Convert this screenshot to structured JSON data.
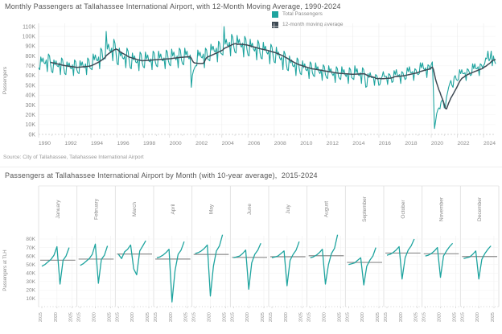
{
  "colors": {
    "teal": "#1EA49F",
    "dark_slate": "#3E4A54",
    "grid": "#efefef",
    "axis_line": "#d9d9d9",
    "avg_line": "#8c8c8c",
    "axis_text": "#8a8a8a",
    "title_text": "#555555"
  },
  "chart1": {
    "title": "Monthly Passengers at Tallahassee International Airport, with 12-Month Moving Average, 1990-2024",
    "ylabel": "Passengers",
    "source": "Source: City of Tallahassee, Tallahassee International Airport",
    "legend": [
      {
        "label": "Total Passengers",
        "color": "#1EA49F"
      },
      {
        "label": "12-month moving average",
        "color": "#3E4A54"
      }
    ]
  },
  "chart2": {
    "title": "Passengers at Tallahassee International Airport by Month (with 10-year average),  2015-2024",
    "ylabel": "Passengers at TLH"
  },
  "chart_data": [
    {
      "type": "line",
      "title": "Monthly Passengers at Tallahassee International Airport, with 12-Month Moving Average, 1990-2024",
      "xlabel": "",
      "ylabel": "Passengers",
      "unit": "thousands of passengers",
      "ylim": [
        0,
        115
      ],
      "y_ticks": [
        0,
        10,
        20,
        30,
        40,
        50,
        60,
        70,
        80,
        90,
        100,
        110
      ],
      "y_tick_suffix": "K",
      "x_tick_years": [
        1990,
        1992,
        1994,
        1996,
        1998,
        2000,
        2002,
        2004,
        2006,
        2008,
        2010,
        2012,
        2014,
        2016,
        2018,
        2020,
        2022,
        2024
      ],
      "legend_position": "top-right",
      "series": [
        {
          "name": "Total Passengers",
          "color": "#1EA49F",
          "source_key": "monthly_by_year"
        },
        {
          "name": "12-month moving average",
          "color": "#3E4A54",
          "derived": "trailing 12-month mean of Total Passengers"
        }
      ],
      "monthly_by_year": {
        "1990": [
          68,
          66,
          79,
          74,
          78,
          73,
          72,
          76,
          64,
          82,
          80,
          71
        ],
        "1991": [
          64,
          63,
          76,
          71,
          75,
          70,
          69,
          73,
          61,
          78,
          76,
          68
        ],
        "1992": [
          62,
          61,
          74,
          69,
          73,
          68,
          67,
          71,
          60,
          76,
          74,
          66
        ],
        "1993": [
          63,
          62,
          75,
          70,
          74,
          69,
          68,
          72,
          61,
          78,
          76,
          68
        ],
        "1994": [
          67,
          66,
          82,
          76,
          81,
          76,
          75,
          79,
          67,
          88,
          86,
          76
        ],
        "1995": [
          78,
          77,
          105,
          87,
          92,
          86,
          84,
          88,
          75,
          97,
          93,
          83
        ],
        "1996": [
          72,
          71,
          88,
          80,
          84,
          78,
          77,
          80,
          68,
          88,
          85,
          76
        ],
        "1997": [
          68,
          67,
          83,
          76,
          80,
          74,
          73,
          76,
          65,
          84,
          82,
          73
        ],
        "1998": [
          69,
          68,
          84,
          77,
          81,
          75,
          74,
          77,
          66,
          85,
          83,
          74
        ],
        "1999": [
          70,
          69,
          85,
          78,
          82,
          76,
          75,
          78,
          67,
          86,
          84,
          75
        ],
        "2000": [
          71,
          70,
          87,
          80,
          84,
          78,
          76,
          80,
          68,
          88,
          86,
          76
        ],
        "2001": [
          72,
          71,
          88,
          81,
          85,
          79,
          77,
          81,
          48,
          60,
          65,
          68
        ],
        "2002": [
          70,
          70,
          86,
          80,
          84,
          79,
          78,
          82,
          68,
          88,
          86,
          77
        ],
        "2003": [
          76,
          75,
          92,
          86,
          90,
          85,
          84,
          88,
          74,
          95,
          93,
          83
        ],
        "2004": [
          82,
          81,
          110,
          92,
          97,
          91,
          90,
          94,
          80,
          102,
          99,
          89
        ],
        "2005": [
          84,
          83,
          101,
          93,
          97,
          91,
          89,
          93,
          79,
          100,
          97,
          87
        ],
        "2006": [
          81,
          80,
          97,
          89,
          93,
          87,
          85,
          89,
          76,
          96,
          93,
          83
        ],
        "2007": [
          78,
          77,
          94,
          86,
          90,
          84,
          82,
          85,
          72,
          92,
          89,
          80
        ],
        "2008": [
          74,
          73,
          89,
          81,
          84,
          78,
          76,
          79,
          66,
          85,
          82,
          73
        ],
        "2009": [
          66,
          65,
          80,
          73,
          76,
          70,
          69,
          72,
          60,
          78,
          76,
          67
        ],
        "2010": [
          62,
          61,
          75,
          68,
          72,
          66,
          65,
          68,
          57,
          74,
          72,
          63
        ],
        "2011": [
          60,
          59,
          73,
          66,
          69,
          64,
          62,
          66,
          55,
          71,
          69,
          61
        ],
        "2012": [
          58,
          57,
          70,
          64,
          67,
          62,
          60,
          63,
          53,
          69,
          67,
          59
        ],
        "2013": [
          57,
          56,
          69,
          63,
          66,
          61,
          59,
          62,
          52,
          68,
          66,
          58
        ],
        "2014": [
          57,
          56,
          70,
          63,
          67,
          61,
          60,
          63,
          52,
          68,
          66,
          59
        ],
        "2015": [
          48,
          49,
          62,
          58,
          63,
          58,
          58,
          58,
          50,
          61,
          60,
          57
        ],
        "2016": [
          50,
          51,
          57,
          59,
          64,
          59,
          59,
          59,
          51,
          62,
          61,
          58
        ],
        "2017": [
          53,
          54,
          65,
          61,
          66,
          60,
          60,
          61,
          52,
          64,
          63,
          59
        ],
        "2018": [
          56,
          57,
          68,
          64,
          69,
          63,
          63,
          64,
          55,
          67,
          66,
          62
        ],
        "2019": [
          61,
          62,
          73,
          68,
          73,
          67,
          66,
          68,
          58,
          71,
          70,
          66
        ],
        "2020": [
          71,
          74,
          45,
          6,
          13,
          21,
          25,
          27,
          26,
          33,
          35,
          33
        ],
        "2021": [
          27,
          28,
          38,
          43,
          48,
          52,
          55,
          50,
          48,
          58,
          60,
          56
        ],
        "2022": [
          55,
          56,
          66,
          62,
          66,
          62,
          62,
          63,
          55,
          67,
          66,
          63
        ],
        "2023": [
          60,
          61,
          72,
          67,
          72,
          67,
          67,
          69,
          60,
          72,
          71,
          68
        ],
        "2024": [
          70,
          72,
          78,
          77,
          85,
          75,
          77,
          85,
          70,
          80,
          75,
          72
        ]
      }
    },
    {
      "type": "line",
      "subtype": "small-multiples-by-month",
      "title": "Passengers at Tallahassee International Airport by Month (with 10-year average),  2015-2024",
      "ylabel": "Passengers at TLH",
      "facets": [
        "January",
        "February",
        "March",
        "April",
        "May",
        "June",
        "July",
        "August",
        "September",
        "October",
        "November",
        "December"
      ],
      "years": [
        2015,
        2016,
        2017,
        2018,
        2019,
        2020,
        2021,
        2022,
        2023,
        2024
      ],
      "x_ticks": [
        2015,
        2020,
        2025
      ],
      "y_ticks": [
        10,
        20,
        30,
        40,
        50,
        60,
        70,
        80
      ],
      "y_tick_suffix": "K",
      "ylim": [
        0,
        90
      ],
      "values_source": "chart_data[0].monthly_by_year for years 2015-2024",
      "average_line": "gray horizontal line = 10-year mean of each month"
    }
  ]
}
